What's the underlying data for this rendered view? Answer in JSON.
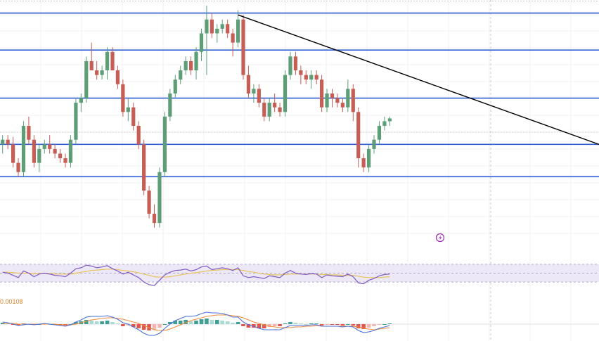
{
  "chart_data": {
    "type": "candlestick",
    "price": {
      "ylim": [
        2.1,
        4.7
      ],
      "candles": [
        [
          0,
          3.2,
          3.3,
          3.1,
          3.25
        ],
        [
          1,
          3.25,
          3.3,
          3.15,
          3.2
        ],
        [
          2,
          3.2,
          3.28,
          2.95,
          3.0
        ],
        [
          3,
          3.0,
          3.05,
          2.85,
          2.9
        ],
        [
          4,
          2.9,
          3.45,
          2.85,
          3.4
        ],
        [
          5,
          3.4,
          3.5,
          3.2,
          3.25
        ],
        [
          6,
          3.25,
          3.3,
          2.95,
          3.0
        ],
        [
          7,
          3.0,
          3.2,
          2.9,
          3.15
        ],
        [
          8,
          3.15,
          3.25,
          3.1,
          3.2
        ],
        [
          9,
          3.2,
          3.3,
          3.1,
          3.15
        ],
        [
          10,
          3.15,
          3.2,
          3.05,
          3.1
        ],
        [
          11,
          3.1,
          3.15,
          3.0,
          3.05
        ],
        [
          12,
          3.05,
          3.1,
          2.95,
          3.0
        ],
        [
          13,
          3.0,
          3.3,
          2.95,
          3.25
        ],
        [
          14,
          3.25,
          3.7,
          3.2,
          3.65
        ],
        [
          15,
          3.65,
          3.75,
          3.55,
          3.7
        ],
        [
          16,
          3.7,
          4.15,
          3.65,
          4.1
        ],
        [
          17,
          4.1,
          4.3,
          4.0,
          4.0
        ],
        [
          18,
          4.0,
          4.1,
          3.9,
          3.95
        ],
        [
          19,
          3.95,
          4.05,
          3.9,
          4.0
        ],
        [
          20,
          4.0,
          4.25,
          3.9,
          4.2
        ],
        [
          21,
          4.2,
          4.25,
          4.0,
          4.0
        ],
        [
          22,
          4.0,
          4.05,
          3.8,
          3.85
        ],
        [
          23,
          3.85,
          3.9,
          3.5,
          3.55
        ],
        [
          24,
          3.55,
          3.7,
          3.45,
          3.6
        ],
        [
          25,
          3.6,
          3.65,
          3.35,
          3.4
        ],
        [
          26,
          3.4,
          3.45,
          3.15,
          3.2
        ],
        [
          27,
          3.2,
          3.25,
          2.65,
          2.7
        ],
        [
          28,
          2.7,
          2.75,
          2.4,
          2.45
        ],
        [
          29,
          2.45,
          2.55,
          2.3,
          2.35
        ],
        [
          30,
          2.35,
          2.95,
          2.3,
          2.9
        ],
        [
          31,
          2.9,
          3.55,
          2.85,
          3.5
        ],
        [
          32,
          3.5,
          3.8,
          3.45,
          3.75
        ],
        [
          33,
          3.75,
          3.95,
          3.7,
          3.9
        ],
        [
          34,
          3.9,
          4.05,
          3.85,
          4.0
        ],
        [
          35,
          4.0,
          4.15,
          3.95,
          4.1
        ],
        [
          36,
          4.1,
          4.15,
          3.95,
          4.0
        ],
        [
          37,
          4.0,
          4.25,
          3.9,
          4.2
        ],
        [
          38,
          4.2,
          4.45,
          4.1,
          4.4
        ],
        [
          39,
          4.4,
          4.7,
          3.95,
          4.55
        ],
        [
          40,
          4.55,
          4.62,
          4.35,
          4.4
        ],
        [
          41,
          4.4,
          4.5,
          4.3,
          4.45
        ],
        [
          42,
          4.45,
          4.55,
          4.4,
          4.5
        ],
        [
          43,
          4.5,
          4.55,
          4.35,
          4.4
        ],
        [
          44,
          4.4,
          4.45,
          4.15,
          4.3
        ],
        [
          45,
          4.3,
          4.65,
          4.25,
          4.55
        ],
        [
          46,
          4.55,
          4.6,
          3.9,
          3.95
        ],
        [
          47,
          3.95,
          4.05,
          3.7,
          3.75
        ],
        [
          48,
          3.75,
          3.85,
          3.65,
          3.8
        ],
        [
          49,
          3.8,
          3.85,
          3.6,
          3.65
        ],
        [
          50,
          3.65,
          3.7,
          3.45,
          3.5
        ],
        [
          51,
          3.5,
          3.7,
          3.45,
          3.65
        ],
        [
          52,
          3.65,
          3.75,
          3.55,
          3.6
        ],
        [
          53,
          3.6,
          3.65,
          3.5,
          3.55
        ],
        [
          54,
          3.55,
          4.0,
          3.5,
          3.95
        ],
        [
          55,
          3.95,
          4.2,
          3.9,
          4.15
        ],
        [
          56,
          4.15,
          4.2,
          3.95,
          4.0
        ],
        [
          57,
          4.0,
          4.05,
          3.85,
          3.95
        ],
        [
          58,
          3.95,
          4.0,
          3.85,
          3.9
        ],
        [
          59,
          3.9,
          4.0,
          3.8,
          3.95
        ],
        [
          60,
          3.95,
          4.0,
          3.85,
          3.9
        ],
        [
          61,
          3.9,
          3.95,
          3.55,
          3.6
        ],
        [
          62,
          3.6,
          3.8,
          3.55,
          3.75
        ],
        [
          63,
          3.75,
          3.8,
          3.6,
          3.7
        ],
        [
          64,
          3.7,
          3.75,
          3.6,
          3.65
        ],
        [
          65,
          3.65,
          3.7,
          3.55,
          3.6
        ],
        [
          66,
          3.6,
          3.9,
          3.55,
          3.8
        ],
        [
          67,
          3.8,
          3.85,
          3.45,
          3.55
        ],
        [
          68,
          3.55,
          3.6,
          2.95,
          3.05
        ],
        [
          69,
          3.05,
          3.1,
          2.9,
          2.95
        ],
        [
          70,
          2.95,
          3.2,
          2.9,
          3.15
        ],
        [
          71,
          3.15,
          3.3,
          3.1,
          3.25
        ],
        [
          72,
          3.25,
          3.45,
          3.2,
          3.4
        ],
        [
          73,
          3.4,
          3.5,
          3.35,
          3.45
        ],
        [
          74,
          3.45,
          3.5,
          3.4,
          3.48
        ]
      ],
      "horizontal_levels": [
        4.62,
        4.22,
        3.7,
        3.2,
        2.85
      ],
      "trendline": {
        "start": [
          45,
          4.6
        ],
        "end": [
          114,
          3.2
        ]
      },
      "x_range": [
        -0.5,
        114
      ],
      "colors": {
        "up": "#5e9e77",
        "down": "#c65e55",
        "levels": "#2e5fd6",
        "trendline": "#000000"
      }
    },
    "rsi": {
      "ylim": [
        0,
        100
      ],
      "band": [
        30,
        70
      ],
      "series": [
        {
          "values": [
            52,
            50,
            45,
            40,
            55,
            50,
            42,
            48,
            50,
            48,
            45,
            44,
            42,
            50,
            60,
            62,
            68,
            66,
            62,
            64,
            67,
            60,
            55,
            48,
            52,
            46,
            40,
            30,
            24,
            22,
            34,
            46,
            52,
            56,
            57,
            59,
            55,
            58,
            64,
            66,
            58,
            60,
            62,
            60,
            56,
            62,
            44,
            40,
            42,
            40,
            38,
            44,
            42,
            40,
            50,
            56,
            50,
            48,
            47,
            49,
            48,
            40,
            46,
            44,
            43,
            42,
            48,
            42,
            28,
            26,
            34,
            38,
            44,
            47,
            48
          ]
        },
        {
          "values": [
            52,
            52,
            51,
            50,
            50,
            50,
            49,
            49,
            49,
            49,
            48,
            48,
            48,
            48,
            50,
            52,
            54,
            56,
            57,
            58,
            59,
            59,
            58,
            56,
            55,
            53,
            51,
            48,
            45,
            42,
            41,
            41,
            42,
            44,
            46,
            48,
            50,
            51,
            53,
            55,
            56,
            57,
            58,
            58,
            58,
            58,
            56,
            54,
            52,
            50,
            48,
            47,
            46,
            46,
            47,
            48,
            48,
            48,
            48,
            48,
            48,
            47,
            47,
            46,
            46,
            45,
            45,
            45,
            43,
            41,
            40,
            40,
            40,
            41,
            42
          ]
        }
      ],
      "colors": {
        "rsi": "#7e5bc4",
        "ma": "#e6c35c",
        "band_fill": "#ede8f8"
      }
    },
    "macd": {
      "label": "0.00108",
      "histogram": [
        0.2,
        0.1,
        -0.1,
        -0.2,
        0.1,
        0.0,
        -0.1,
        0.0,
        0.1,
        0.0,
        -0.1,
        -0.1,
        -0.2,
        0.0,
        0.3,
        0.4,
        0.6,
        0.5,
        0.4,
        0.4,
        0.5,
        0.3,
        0.1,
        -0.3,
        -0.2,
        -0.4,
        -0.6,
        -0.8,
        -0.9,
        -0.8,
        -0.5,
        0.0,
        0.3,
        0.5,
        0.5,
        0.6,
        0.4,
        0.5,
        0.7,
        0.8,
        0.6,
        0.6,
        0.5,
        0.4,
        0.2,
        0.3,
        -0.3,
        -0.5,
        -0.5,
        -0.6,
        -0.6,
        -0.4,
        -0.3,
        -0.3,
        0.1,
        0.3,
        0.2,
        0.1,
        0.0,
        0.1,
        0.1,
        -0.2,
        -0.1,
        -0.1,
        -0.1,
        -0.2,
        0.0,
        -0.2,
        -0.6,
        -0.7,
        -0.5,
        -0.3,
        -0.1,
        0.0,
        0.1
      ],
      "macd_line": [
        0.3,
        0.2,
        0.0,
        -0.2,
        -0.1,
        0.0,
        -0.1,
        0.0,
        0.1,
        0.0,
        -0.1,
        -0.2,
        -0.3,
        -0.1,
        0.3,
        0.6,
        1.0,
        1.1,
        1.1,
        1.1,
        1.2,
        1.0,
        0.7,
        0.2,
        0.0,
        -0.4,
        -0.8,
        -1.3,
        -1.6,
        -1.6,
        -1.3,
        -0.6,
        0.0,
        0.5,
        0.8,
        1.1,
        1.1,
        1.2,
        1.5,
        1.7,
        1.6,
        1.6,
        1.5,
        1.3,
        1.0,
        1.0,
        0.3,
        -0.1,
        -0.3,
        -0.6,
        -0.8,
        -0.8,
        -0.8,
        -0.8,
        -0.5,
        -0.2,
        -0.2,
        -0.2,
        -0.2,
        -0.1,
        -0.1,
        -0.3,
        -0.3,
        -0.3,
        -0.3,
        -0.4,
        -0.3,
        -0.4,
        -0.9,
        -1.2,
        -1.1,
        -0.9,
        -0.6,
        -0.4,
        -0.2
      ],
      "signal_line": [
        0.1,
        0.1,
        0.1,
        0.0,
        0.0,
        0.0,
        0.0,
        0.0,
        0.0,
        0.0,
        0.0,
        -0.1,
        -0.1,
        -0.1,
        0.0,
        0.2,
        0.4,
        0.6,
        0.7,
        0.8,
        0.9,
        0.9,
        0.8,
        0.7,
        0.5,
        0.3,
        0.1,
        -0.2,
        -0.5,
        -0.8,
        -0.9,
        -0.9,
        -0.7,
        -0.4,
        -0.1,
        0.2,
        0.5,
        0.7,
        0.9,
        1.1,
        1.2,
        1.3,
        1.3,
        1.3,
        1.2,
        1.1,
        0.9,
        0.6,
        0.3,
        0.1,
        -0.1,
        -0.3,
        -0.4,
        -0.5,
        -0.5,
        -0.5,
        -0.4,
        -0.4,
        -0.3,
        -0.3,
        -0.2,
        -0.3,
        -0.3,
        -0.3,
        -0.3,
        -0.3,
        -0.3,
        -0.3,
        -0.4,
        -0.6,
        -0.7,
        -0.8,
        -0.7,
        -0.6,
        -0.5
      ],
      "ylim": [
        -2.0,
        2.0
      ],
      "colors": {
        "macd": "#4a6fd8",
        "signal": "#f08a3c",
        "hist_up": "#3f9e94",
        "hist_up_light": "#a9d9d3",
        "hist_down": "#e0574f",
        "hist_down_light": "#f2b6b1"
      }
    },
    "grid": true
  }
}
